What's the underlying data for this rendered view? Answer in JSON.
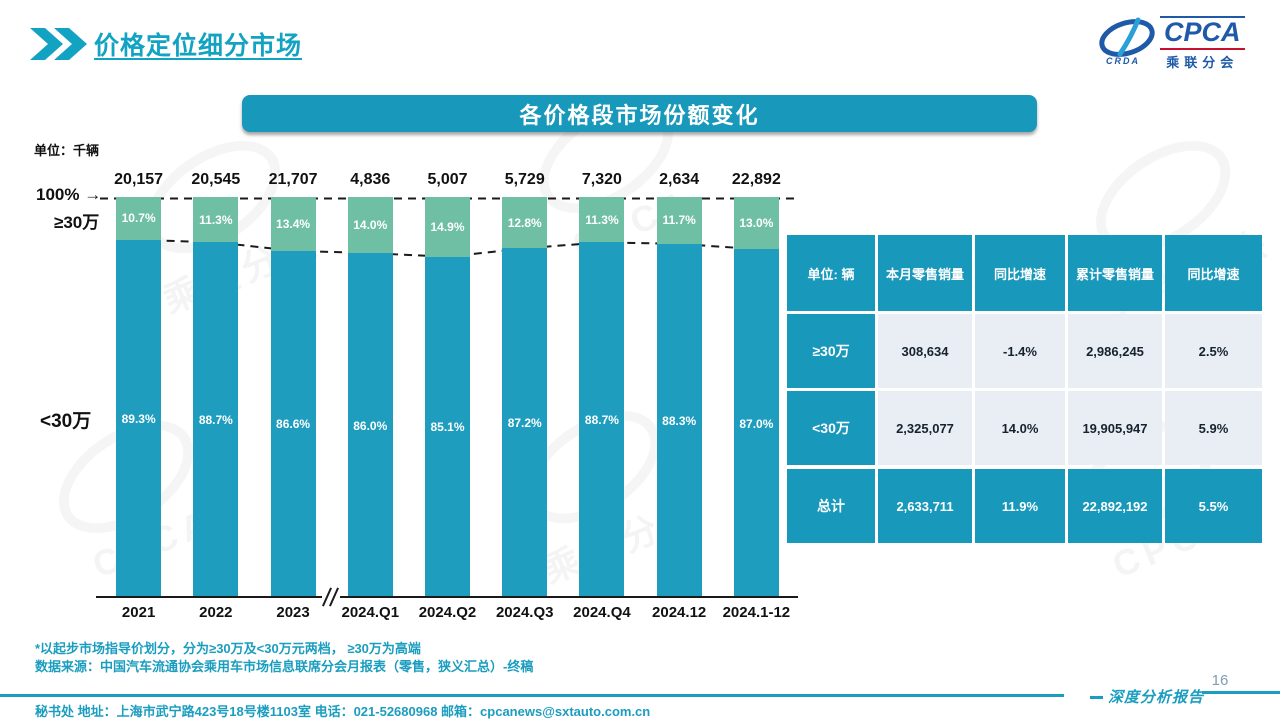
{
  "slide": {
    "title": "价格定位细分市场",
    "page_number": "16",
    "report_label": "深度分析报告"
  },
  "logo": {
    "cpca": "CPCA",
    "crda": "CRDA",
    "sub": "乘联分会"
  },
  "banner": {
    "title": "各价格段市场份额变化"
  },
  "chart_data": {
    "type": "bar",
    "stacked": true,
    "unit_label": "单位：千辆",
    "y_top_label": "100% →",
    "segment_top_label": "≥30万",
    "segment_bottom_label": "<30万",
    "categories": [
      "2021",
      "2022",
      "2023",
      "2024.Q1",
      "2024.Q2",
      "2024.Q3",
      "2024.Q4",
      "2024.12",
      "2024.1-12"
    ],
    "bar_totals": [
      "20,157",
      "20,545",
      "21,707",
      "4,836",
      "5,007",
      "5,729",
      "7,320",
      "2,634",
      "22,892"
    ],
    "series": [
      {
        "name": "≥30万",
        "values": [
          10.7,
          11.3,
          13.4,
          14.0,
          14.9,
          12.8,
          11.3,
          11.7,
          13.0
        ]
      },
      {
        "name": "<30万",
        "values": [
          89.3,
          88.7,
          86.6,
          86.0,
          85.1,
          87.2,
          88.7,
          88.3,
          87.0
        ]
      }
    ],
    "ylim": [
      0,
      100
    ],
    "grid": false,
    "legend_position": "none",
    "axis_break_between": [
      "2023",
      "2024.Q1"
    ]
  },
  "table": {
    "headers": [
      "单位: 辆",
      "本月零售销量",
      "同比增速",
      "累计零售销量",
      "同比增速"
    ],
    "rows": [
      {
        "label": "≥30万",
        "cells": [
          "308,634",
          "-1.4%",
          "2,986,245",
          "2.5%"
        ],
        "total": false
      },
      {
        "label": "<30万",
        "cells": [
          "2,325,077",
          "14.0%",
          "19,905,947",
          "5.9%"
        ],
        "total": false
      },
      {
        "label": "总计",
        "cells": [
          "2,633,711",
          "11.9%",
          "22,892,192",
          "5.5%"
        ],
        "total": true
      }
    ]
  },
  "footnotes": {
    "line1": "*以起步市场指导价划分，分为≥30万及<30万元两档， ≥30万为高端",
    "line2": "数据来源：中国汽车流通协会乘用车市场信息联席分会月报表（零售，狭义汇总）-终稿"
  },
  "footer": {
    "contact": "秘书处  地址：上海市武宁路423号18号楼1103室 电话：021-52680968  邮箱：cpcanews@sxtauto.com.cn"
  },
  "colors": {
    "accent": "#1898ba",
    "accent2": "#1b9dbf",
    "title_teal": "#12a2c2",
    "bar_teal": "#1e9dbe",
    "bar_green": "#6fbfa4",
    "cell_bg": "#e9eef5",
    "dash": "#1a1a1a"
  }
}
